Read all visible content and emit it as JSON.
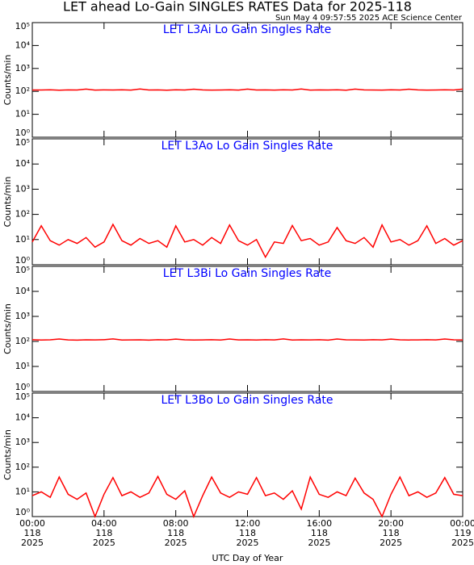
{
  "title": "LET ahead Lo-Gain SINGLES RATES Data for 2025-118",
  "subtitle": "Sun May  4 09:57:55 2025 ACE Science Center",
  "chart_data": [
    {
      "type": "line",
      "title": "LET L3Ai Lo Gain Singles Rate",
      "ylabel": "Counts/min",
      "color": "#ff0000",
      "log": true,
      "x": [
        0,
        0.5,
        1,
        1.5,
        2,
        2.5,
        3,
        3.5,
        4,
        4.5,
        5,
        5.5,
        6,
        6.5,
        7,
        7.5,
        8,
        8.5,
        9,
        9.5,
        10,
        10.5,
        11,
        11.5,
        12,
        12.5,
        13,
        13.5,
        14,
        14.5,
        15,
        15.5,
        16,
        16.5,
        17,
        17.5,
        18,
        18.5,
        19,
        19.5,
        20,
        20.5,
        21,
        21.5,
        22,
        22.5,
        23,
        23.5,
        24
      ],
      "values": [
        115,
        115,
        118,
        113,
        116,
        115,
        125,
        114,
        116,
        115,
        117,
        114,
        126,
        115,
        116,
        113,
        117,
        115,
        124,
        116,
        114,
        115,
        117,
        114,
        125,
        115,
        116,
        114,
        117,
        115,
        126,
        114,
        116,
        115,
        117,
        113,
        125,
        116,
        115,
        114,
        117,
        115,
        124,
        116,
        114,
        115,
        117,
        115,
        125
      ],
      "xlim": [
        0,
        24
      ],
      "xticks": [
        0,
        4,
        8,
        12,
        16,
        20,
        24
      ],
      "ylim": [
        1,
        100000
      ],
      "yticks": [
        {
          "value": 1,
          "label": "10⁰"
        },
        {
          "value": 10,
          "label": "10¹"
        },
        {
          "value": 100,
          "label": "10²"
        },
        {
          "value": 1000,
          "label": "10³"
        },
        {
          "value": 10000,
          "label": "10⁴"
        },
        {
          "value": 100000,
          "label": "10⁵"
        }
      ]
    },
    {
      "type": "line",
      "title": "LET L3Ao Lo Gain Singles Rate",
      "ylabel": "Counts/min",
      "color": "#ff0000",
      "log": true,
      "x": [
        0,
        0.5,
        1,
        1.5,
        2,
        2.5,
        3,
        3.5,
        4,
        4.5,
        5,
        5.5,
        6,
        6.5,
        7,
        7.5,
        8,
        8.5,
        9,
        9.5,
        10,
        10.5,
        11,
        11.5,
        12,
        12.5,
        13,
        13.5,
        14,
        14.5,
        15,
        15.5,
        16,
        16.5,
        17,
        17.5,
        18,
        18.5,
        19,
        19.5,
        20,
        20.5,
        21,
        21.5,
        22,
        22.5,
        23,
        23.5,
        24
      ],
      "values": [
        8,
        35,
        9,
        6,
        10,
        7,
        12,
        5,
        8,
        40,
        9,
        6,
        11,
        7,
        9,
        5,
        35,
        8,
        10,
        6,
        12,
        7,
        38,
        9,
        6,
        10,
        2,
        8,
        7,
        36,
        9,
        11,
        6,
        8,
        30,
        9,
        7,
        12,
        5,
        38,
        8,
        10,
        6,
        9,
        35,
        7,
        11,
        6,
        9
      ],
      "xlim": [
        0,
        24
      ],
      "xticks": [
        0,
        4,
        8,
        12,
        16,
        20,
        24
      ],
      "ylim": [
        1,
        100000
      ],
      "yticks": [
        {
          "value": 1,
          "label": "10⁰"
        },
        {
          "value": 10,
          "label": "10¹"
        },
        {
          "value": 100,
          "label": "10²"
        },
        {
          "value": 1000,
          "label": "10³"
        },
        {
          "value": 10000,
          "label": "10⁴"
        },
        {
          "value": 100000,
          "label": "10⁵"
        }
      ]
    },
    {
      "type": "line",
      "title": "LET L3Bi Lo Gain Singles Rate",
      "ylabel": "Counts/min",
      "color": "#ff0000",
      "log": true,
      "x": [
        0,
        0.5,
        1,
        1.5,
        2,
        2.5,
        3,
        3.5,
        4,
        4.5,
        5,
        5.5,
        6,
        6.5,
        7,
        7.5,
        8,
        8.5,
        9,
        9.5,
        10,
        10.5,
        11,
        11.5,
        12,
        12.5,
        13,
        13.5,
        14,
        14.5,
        15,
        15.5,
        16,
        16.5,
        17,
        17.5,
        18,
        18.5,
        19,
        19.5,
        20,
        20.5,
        21,
        21.5,
        22,
        22.5,
        23,
        23.5,
        24
      ],
      "values": [
        117,
        114,
        116,
        125,
        115,
        113,
        116,
        115,
        117,
        126,
        114,
        115,
        116,
        113,
        117,
        115,
        124,
        116,
        114,
        115,
        117,
        114,
        125,
        115,
        116,
        114,
        117,
        115,
        126,
        114,
        116,
        115,
        117,
        113,
        125,
        116,
        115,
        114,
        117,
        115,
        124,
        116,
        114,
        115,
        117,
        115,
        125,
        116,
        115
      ],
      "xlim": [
        0,
        24
      ],
      "xticks": [
        0,
        4,
        8,
        12,
        16,
        20,
        24
      ],
      "ylim": [
        1,
        100000
      ],
      "yticks": [
        {
          "value": 1,
          "label": "10⁰"
        },
        {
          "value": 10,
          "label": "10¹"
        },
        {
          "value": 100,
          "label": "10²"
        },
        {
          "value": 1000,
          "label": "10³"
        },
        {
          "value": 10000,
          "label": "10⁴"
        },
        {
          "value": 100000,
          "label": "10⁵"
        }
      ]
    },
    {
      "type": "line",
      "title": "LET L3Bo Lo Gain Singles Rate",
      "ylabel": "Counts/min",
      "xlabel": "UTC Day of Year",
      "color": "#ff0000",
      "log": true,
      "x": [
        0,
        0.5,
        1,
        1.5,
        2,
        2.5,
        3,
        3.5,
        4,
        4.5,
        5,
        5.5,
        6,
        6.5,
        7,
        7.5,
        8,
        8.5,
        9,
        9.5,
        10,
        10.5,
        11,
        11.5,
        12,
        12.5,
        13,
        13.5,
        14,
        14.5,
        15,
        15.5,
        16,
        16.5,
        17,
        17.5,
        18,
        18.5,
        19,
        19.5,
        20,
        20.5,
        21,
        21.5,
        22,
        22.5,
        23,
        23.5,
        24
      ],
      "values": [
        7,
        10,
        6,
        40,
        8,
        5,
        9,
        1,
        8,
        38,
        7,
        10,
        6,
        9,
        42,
        8,
        5,
        11,
        1,
        7,
        40,
        9,
        6,
        10,
        8,
        38,
        7,
        9,
        5,
        11,
        2,
        40,
        8,
        6,
        10,
        7,
        36,
        9,
        5,
        1,
        8,
        40,
        7,
        10,
        6,
        9,
        38,
        8,
        7
      ],
      "xlim": [
        0,
        24
      ],
      "xticks": [
        {
          "value": 0,
          "label": "00:00\n118\n2025"
        },
        {
          "value": 4,
          "label": "04:00\n118\n2025"
        },
        {
          "value": 8,
          "label": "08:00\n118\n2025"
        },
        {
          "value": 12,
          "label": "12:00\n118\n2025"
        },
        {
          "value": 16,
          "label": "16:00\n118\n2025"
        },
        {
          "value": 20,
          "label": "20:00\n118\n2025"
        },
        {
          "value": 24,
          "label": "00:00\n119\n2025"
        }
      ],
      "ylim": [
        1,
        100000
      ],
      "yticks": [
        {
          "value": 1,
          "label": "10⁰"
        },
        {
          "value": 10,
          "label": "10¹"
        },
        {
          "value": 100,
          "label": "10²"
        },
        {
          "value": 1000,
          "label": "10³"
        },
        {
          "value": 10000,
          "label": "10⁴"
        },
        {
          "value": 100000,
          "label": "10⁵"
        }
      ]
    }
  ]
}
